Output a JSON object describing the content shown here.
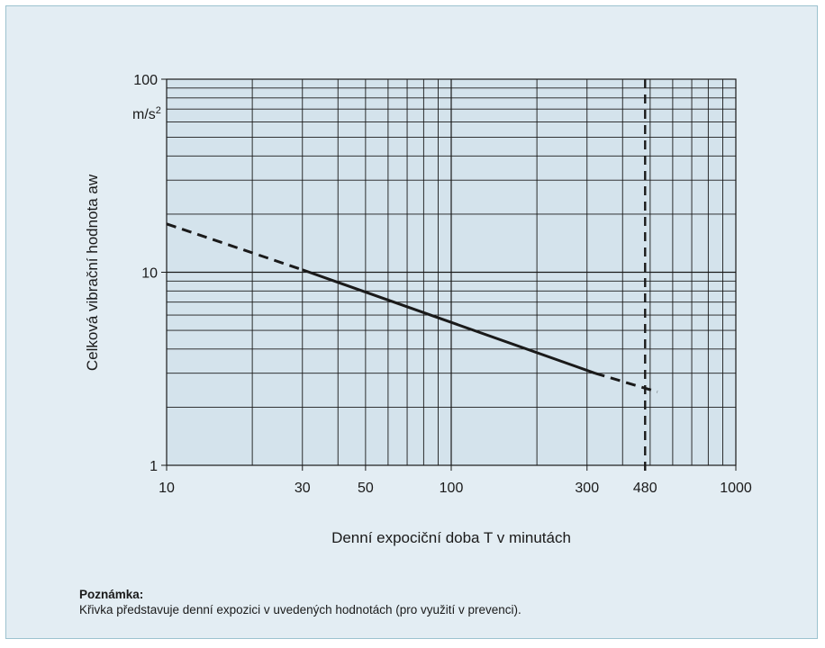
{
  "chart_data": {
    "type": "line",
    "scale": {
      "x": "log",
      "y": "log"
    },
    "xlim": [
      10,
      1000
    ],
    "ylim": [
      1,
      100
    ],
    "xlabel": "Denní expociční doba T v minutách",
    "ylabel": "Celková vibrační hodnota aw",
    "yunit": "m/s²",
    "x_ticks": [
      {
        "value": 10,
        "label": "10"
      },
      {
        "value": 30,
        "label": "30"
      },
      {
        "value": 50,
        "label": "50"
      },
      {
        "value": 100,
        "label": "100"
      },
      {
        "value": 300,
        "label": "300"
      },
      {
        "value": 480,
        "label": "480"
      },
      {
        "value": 1000,
        "label": "1000"
      }
    ],
    "y_ticks": [
      {
        "value": 1,
        "label": "1"
      },
      {
        "value": 10,
        "label": "10"
      },
      {
        "value": 100,
        "label": "100"
      }
    ],
    "x_gridlines": [
      20,
      30,
      40,
      50,
      60,
      70,
      80,
      90,
      200,
      300,
      400,
      500,
      600,
      700,
      800,
      900
    ],
    "y_gridlines": [
      2,
      3,
      4,
      5,
      6,
      7,
      8,
      9,
      20,
      30,
      40,
      50,
      60,
      70,
      80,
      90
    ],
    "series": [
      {
        "style": "dashed",
        "x": [
          10,
          30
        ],
        "y": [
          17.8,
          10.3
        ]
      },
      {
        "style": "solid",
        "x": [
          30,
          320
        ],
        "y": [
          10.3,
          3.0
        ]
      },
      {
        "style": "dashed",
        "x": [
          320,
          530
        ],
        "y": [
          3.0,
          2.4
        ]
      }
    ],
    "reference_line": {
      "axis": "x",
      "value": 480,
      "style": "dashed"
    },
    "colors": {
      "plot_bg": "#d4e3ec",
      "grid": "#1a1a1a",
      "line": "#1a1a1a",
      "panel_bg": "#e3edf3"
    }
  },
  "note": {
    "title": "Poznámka:",
    "text": "Křivka představuje denní expozici v uvedených hodnotách (pro využití v prevenci)."
  }
}
